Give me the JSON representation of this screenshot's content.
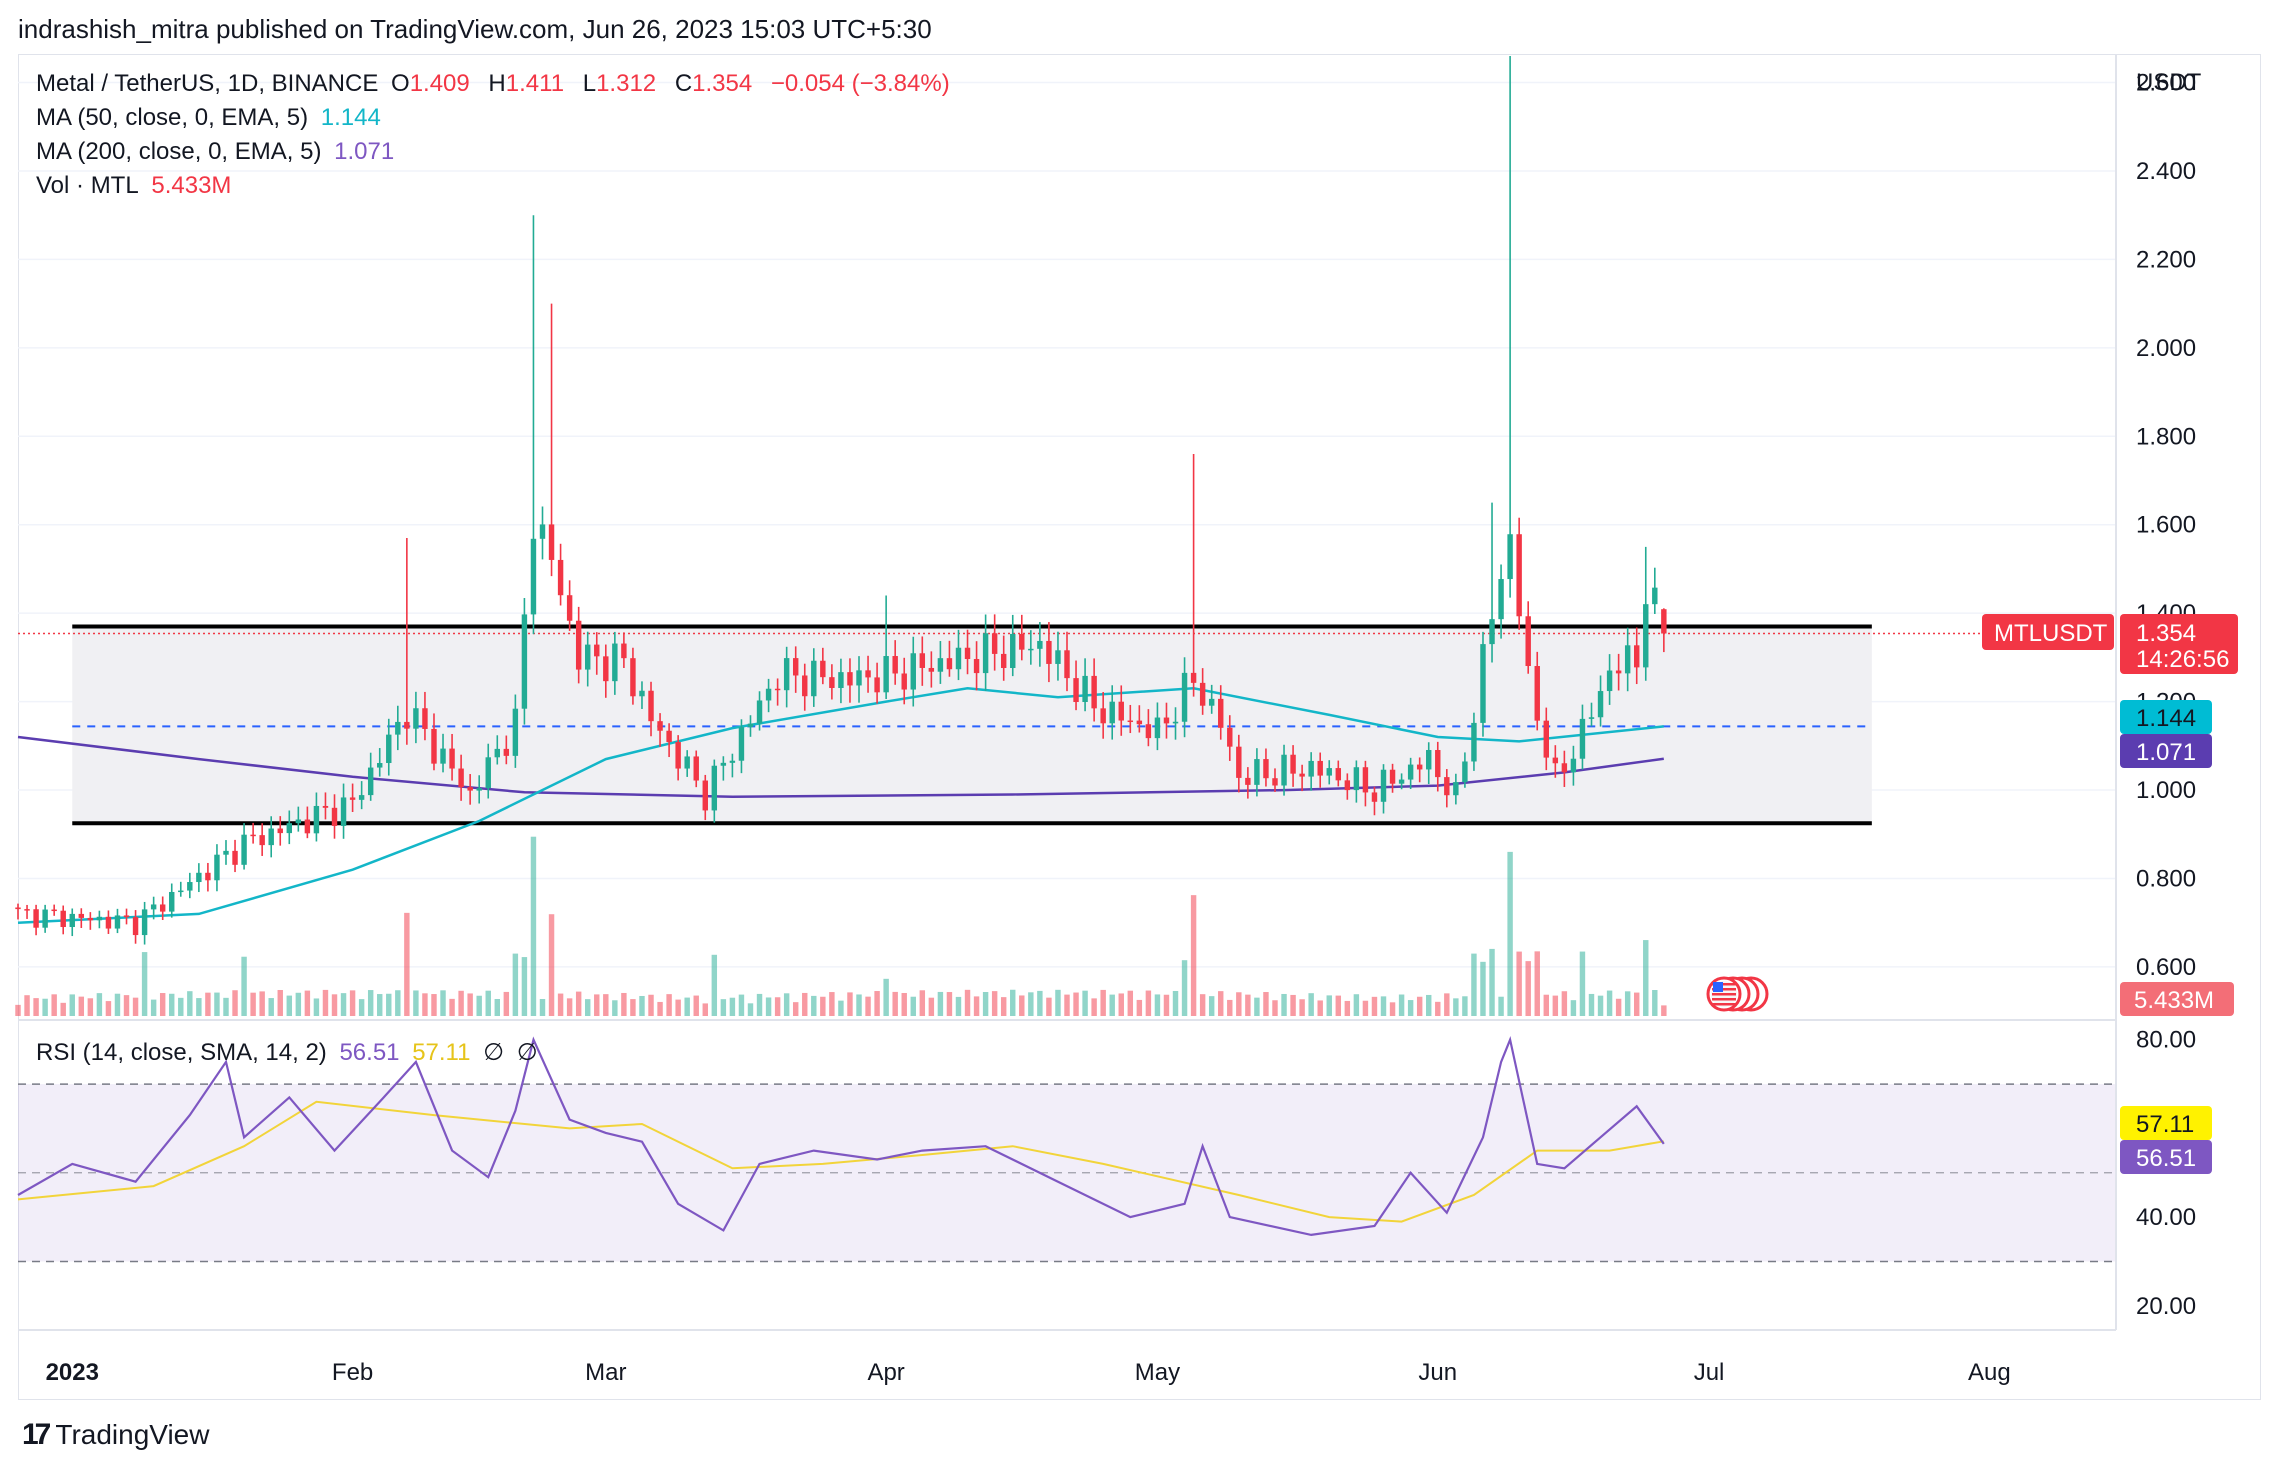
{
  "header": {
    "text": "indrashish_mitra published on TradingView.com, Jun 26, 2023 15:03 UTC+5:30"
  },
  "legend": {
    "symbol": "Metal / TetherUS, 1D, BINANCE",
    "o_label": "O",
    "o_value": "1.409",
    "h_label": "H",
    "h_value": "1.411",
    "l_label": "L",
    "l_value": "1.312",
    "c_label": "C",
    "c_value": "1.354",
    "change": "−0.054 (−3.84%)",
    "ma50_label": "MA (50, close, 0, EMA, 5)",
    "ma50_value": "1.144",
    "ma200_label": "MA (200, close, 0, EMA, 5)",
    "ma200_value": "1.071",
    "vol_label": "Vol · MTL",
    "vol_value": "5.433M"
  },
  "rsi_legend": {
    "label": "RSI (14, close, SMA, 14, 2)",
    "rsi_value": "56.51",
    "sma_value": "57.11",
    "extra1": "∅",
    "extra2": "∅"
  },
  "price_axis": {
    "unit": "USDT",
    "ticks": [
      "2.600",
      "2.400",
      "2.200",
      "2.000",
      "1.800",
      "1.600",
      "1.400",
      "1.200",
      "1.000",
      "0.800",
      "0.600"
    ]
  },
  "rsi_axis": {
    "ticks": [
      "80.00",
      "40.00",
      "20.00"
    ]
  },
  "badges": {
    "symbol": "MTLUSDT",
    "price": "1.354",
    "countdown": "14:26:56",
    "ma50": "1.144",
    "ma200": "1.071",
    "volume": "5.433M",
    "rsi_sma": "57.11",
    "rsi": "56.51"
  },
  "time_axis": {
    "labels": [
      "2023",
      "Feb",
      "Mar",
      "Apr",
      "May",
      "Jun",
      "Jul",
      "Aug"
    ]
  },
  "brand": {
    "logo": "17",
    "name": "TradingView"
  },
  "colors": {
    "up": "#22ab94",
    "down": "#f23645",
    "ma50": "#13b6c8",
    "ma200": "#5b3db0",
    "rsi": "#7e57c2",
    "rsi_sma": "#f2d43a"
  },
  "chart_data": [
    {
      "type": "candlestick",
      "title": "Metal / TetherUS, 1D, BINANCE",
      "ylabel": "USDT",
      "ylim": [
        0.48,
        2.66
      ],
      "x_range": [
        "2022-12-26",
        "2023-08-15"
      ],
      "annotations": {
        "resistance_line": 1.37,
        "support_line": 0.925,
        "ma50_dashed_line": 1.144,
        "current_price_line": 1.354,
        "range_box": {
          "from": "2023-01-01",
          "to": "2023-07-19",
          "low": 0.925,
          "high": 1.37
        }
      },
      "anchor_candles": [
        {
          "date": "2022-12-26",
          "close": 0.72
        },
        {
          "date": "2023-01-08",
          "close": 0.7
        },
        {
          "date": "2023-01-20",
          "close": 0.88
        },
        {
          "date": "2023-02-01",
          "close": 0.97
        },
        {
          "date": "2023-02-07",
          "close": 1.18,
          "high": 1.57
        },
        {
          "date": "2023-02-14",
          "close": 0.99
        },
        {
          "date": "2023-02-19",
          "close": 1.15
        },
        {
          "date": "2023-02-21",
          "close": 1.62,
          "high": 2.3
        },
        {
          "date": "2023-02-23",
          "close": 1.52,
          "high": 2.1
        },
        {
          "date": "2023-02-26",
          "close": 1.3
        },
        {
          "date": "2023-03-03",
          "close": 1.29
        },
        {
          "date": "2023-03-06",
          "close": 1.16
        },
        {
          "date": "2023-03-12",
          "close": 0.99
        },
        {
          "date": "2023-03-20",
          "close": 1.26
        },
        {
          "date": "2023-03-28",
          "close": 1.25
        },
        {
          "date": "2023-04-01",
          "close": 1.26,
          "high": 1.44
        },
        {
          "date": "2023-04-10",
          "close": 1.3
        },
        {
          "date": "2023-04-18",
          "close": 1.33
        },
        {
          "date": "2023-04-24",
          "close": 1.19
        },
        {
          "date": "2023-05-01",
          "close": 1.13
        },
        {
          "date": "2023-05-05",
          "close": 1.25,
          "high": 1.76
        },
        {
          "date": "2023-05-08",
          "close": 1.15
        },
        {
          "date": "2023-05-10",
          "close": 1.03
        },
        {
          "date": "2023-05-18",
          "close": 1.05
        },
        {
          "date": "2023-05-25",
          "close": 1.0
        },
        {
          "date": "2023-05-31",
          "close": 1.07
        },
        {
          "date": "2023-06-03",
          "close": 0.98
        },
        {
          "date": "2023-06-05",
          "close": 1.18
        },
        {
          "date": "2023-06-07",
          "close": 1.4,
          "high": 1.65
        },
        {
          "date": "2023-06-09",
          "close": 1.57,
          "high": 2.66
        },
        {
          "date": "2023-06-11",
          "close": 1.25
        },
        {
          "date": "2023-06-14",
          "close": 1.02
        },
        {
          "date": "2023-06-17",
          "close": 1.13
        },
        {
          "date": "2023-06-20",
          "close": 1.27
        },
        {
          "date": "2023-06-23",
          "close": 1.3
        },
        {
          "date": "2023-06-24",
          "close": 1.45,
          "high": 1.55
        },
        {
          "date": "2023-06-26",
          "open": 1.409,
          "high": 1.411,
          "low": 1.312,
          "close": 1.354
        }
      ],
      "ma50": [
        {
          "date": "2022-12-26",
          "value": 0.7
        },
        {
          "date": "2023-01-15",
          "value": 0.72
        },
        {
          "date": "2023-02-01",
          "value": 0.82
        },
        {
          "date": "2023-02-15",
          "value": 0.93
        },
        {
          "date": "2023-03-01",
          "value": 1.07
        },
        {
          "date": "2023-03-15",
          "value": 1.14
        },
        {
          "date": "2023-04-01",
          "value": 1.2
        },
        {
          "date": "2023-04-10",
          "value": 1.23
        },
        {
          "date": "2023-04-20",
          "value": 1.21
        },
        {
          "date": "2023-05-05",
          "value": 1.23
        },
        {
          "date": "2023-05-20",
          "value": 1.17
        },
        {
          "date": "2023-06-01",
          "value": 1.12
        },
        {
          "date": "2023-06-10",
          "value": 1.11
        },
        {
          "date": "2023-06-26",
          "value": 1.144
        }
      ],
      "ma200": [
        {
          "date": "2022-12-26",
          "value": 1.12
        },
        {
          "date": "2023-01-15",
          "value": 1.07
        },
        {
          "date": "2023-02-01",
          "value": 1.03
        },
        {
          "date": "2023-02-20",
          "value": 0.995
        },
        {
          "date": "2023-03-15",
          "value": 0.985
        },
        {
          "date": "2023-04-15",
          "value": 0.99
        },
        {
          "date": "2023-05-15",
          "value": 1.0
        },
        {
          "date": "2023-06-01",
          "value": 1.01
        },
        {
          "date": "2023-06-15",
          "value": 1.04
        },
        {
          "date": "2023-06-26",
          "value": 1.071
        }
      ],
      "volume_last": "5.433M"
    },
    {
      "type": "line",
      "title": "RSI (14, close, SMA, 14, 2)",
      "ylim": [
        15,
        84
      ],
      "bands": {
        "upper": 70,
        "middle": 50,
        "lower": 30
      },
      "series": [
        {
          "name": "RSI",
          "points": [
            {
              "date": "2022-12-26",
              "value": 45
            },
            {
              "date": "2023-01-01",
              "value": 52
            },
            {
              "date": "2023-01-08",
              "value": 48
            },
            {
              "date": "2023-01-14",
              "value": 63
            },
            {
              "date": "2023-01-18",
              "value": 75
            },
            {
              "date": "2023-01-20",
              "value": 58
            },
            {
              "date": "2023-01-25",
              "value": 67
            },
            {
              "date": "2023-01-30",
              "value": 55
            },
            {
              "date": "2023-02-04",
              "value": 66
            },
            {
              "date": "2023-02-08",
              "value": 75
            },
            {
              "date": "2023-02-12",
              "value": 55
            },
            {
              "date": "2023-02-16",
              "value": 49
            },
            {
              "date": "2023-02-19",
              "value": 64
            },
            {
              "date": "2023-02-21",
              "value": 80
            },
            {
              "date": "2023-02-25",
              "value": 62
            },
            {
              "date": "2023-03-01",
              "value": 59
            },
            {
              "date": "2023-03-05",
              "value": 57
            },
            {
              "date": "2023-03-09",
              "value": 43
            },
            {
              "date": "2023-03-14",
              "value": 37
            },
            {
              "date": "2023-03-18",
              "value": 52
            },
            {
              "date": "2023-03-24",
              "value": 55
            },
            {
              "date": "2023-03-31",
              "value": 53
            },
            {
              "date": "2023-04-05",
              "value": 55
            },
            {
              "date": "2023-04-12",
              "value": 56
            },
            {
              "date": "2023-04-20",
              "value": 48
            },
            {
              "date": "2023-04-28",
              "value": 40
            },
            {
              "date": "2023-05-04",
              "value": 43
            },
            {
              "date": "2023-05-06",
              "value": 56
            },
            {
              "date": "2023-05-09",
              "value": 40
            },
            {
              "date": "2023-05-18",
              "value": 36
            },
            {
              "date": "2023-05-25",
              "value": 38
            },
            {
              "date": "2023-05-29",
              "value": 50
            },
            {
              "date": "2023-06-02",
              "value": 41
            },
            {
              "date": "2023-06-06",
              "value": 58
            },
            {
              "date": "2023-06-08",
              "value": 75
            },
            {
              "date": "2023-06-09",
              "value": 80
            },
            {
              "date": "2023-06-12",
              "value": 52
            },
            {
              "date": "2023-06-15",
              "value": 51
            },
            {
              "date": "2023-06-19",
              "value": 58
            },
            {
              "date": "2023-06-23",
              "value": 65
            },
            {
              "date": "2023-06-26",
              "value": 56.51
            }
          ]
        },
        {
          "name": "SMA",
          "points": [
            {
              "date": "2022-12-26",
              "value": 44
            },
            {
              "date": "2023-01-10",
              "value": 47
            },
            {
              "date": "2023-01-20",
              "value": 56
            },
            {
              "date": "2023-01-28",
              "value": 66
            },
            {
              "date": "2023-02-10",
              "value": 63
            },
            {
              "date": "2023-02-25",
              "value": 60
            },
            {
              "date": "2023-03-05",
              "value": 61
            },
            {
              "date": "2023-03-15",
              "value": 51
            },
            {
              "date": "2023-03-25",
              "value": 52
            },
            {
              "date": "2023-04-05",
              "value": 54
            },
            {
              "date": "2023-04-15",
              "value": 56
            },
            {
              "date": "2023-04-25",
              "value": 52
            },
            {
              "date": "2023-05-10",
              "value": 45
            },
            {
              "date": "2023-05-20",
              "value": 40
            },
            {
              "date": "2023-05-28",
              "value": 39
            },
            {
              "date": "2023-06-05",
              "value": 45
            },
            {
              "date": "2023-06-12",
              "value": 55
            },
            {
              "date": "2023-06-20",
              "value": 55
            },
            {
              "date": "2023-06-26",
              "value": 57.11
            }
          ]
        }
      ]
    }
  ]
}
